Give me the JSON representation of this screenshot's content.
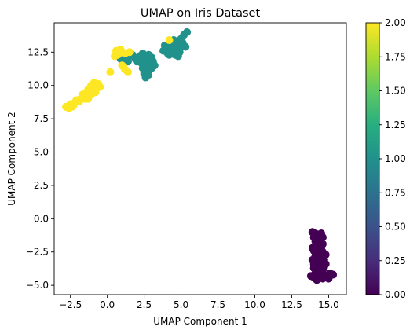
{
  "chart_data": {
    "type": "scatter",
    "title": "UMAP on Iris Dataset",
    "xlabel": "UMAP Component 1",
    "ylabel": "UMAP Component 2",
    "xlim": [
      -3.6,
      16.2
    ],
    "ylim": [
      -5.7,
      14.7
    ],
    "xticks": [
      -2.5,
      0.0,
      2.5,
      5.0,
      7.5,
      10.0,
      12.5,
      15.0
    ],
    "xtick_labels": [
      "−2.5",
      "0.0",
      "2.5",
      "5.0",
      "7.5",
      "10.0",
      "12.5",
      "15.0"
    ],
    "yticks": [
      -5.0,
      -2.5,
      0.0,
      2.5,
      5.0,
      7.5,
      10.0,
      12.5
    ],
    "ytick_labels": [
      "−5.0",
      "−2.5",
      "0.0",
      "2.5",
      "5.0",
      "7.5",
      "10.0",
      "12.5"
    ],
    "grid": false,
    "colormap": "viridis",
    "colorbar": {
      "min": 0.0,
      "max": 2.0,
      "ticks": [
        0.0,
        0.25,
        0.5,
        0.75,
        1.0,
        1.25,
        1.5,
        1.75,
        2.0
      ],
      "tick_labels": [
        "0.00",
        "0.25",
        "0.50",
        "0.75",
        "1.00",
        "1.25",
        "1.50",
        "1.75",
        "2.00"
      ]
    },
    "class_colors": [
      "#440154",
      "#21918c",
      "#fde725"
    ],
    "points": [
      {
        "x": 13.9,
        "y": -1.0,
        "c": 0
      },
      {
        "x": 14.1,
        "y": -1.1,
        "c": 0
      },
      {
        "x": 14.3,
        "y": -1.2,
        "c": 0
      },
      {
        "x": 14.5,
        "y": -1.1,
        "c": 0
      },
      {
        "x": 14.2,
        "y": -1.5,
        "c": 0
      },
      {
        "x": 14.0,
        "y": -1.4,
        "c": 0
      },
      {
        "x": 14.4,
        "y": -1.6,
        "c": 0
      },
      {
        "x": 14.6,
        "y": -1.9,
        "c": 0
      },
      {
        "x": 14.2,
        "y": -2.0,
        "c": 0
      },
      {
        "x": 14.3,
        "y": -2.4,
        "c": 0
      },
      {
        "x": 14.0,
        "y": -2.4,
        "c": 0
      },
      {
        "x": 14.6,
        "y": -2.5,
        "c": 0
      },
      {
        "x": 14.1,
        "y": -2.8,
        "c": 0
      },
      {
        "x": 14.4,
        "y": -3.0,
        "c": 0
      },
      {
        "x": 14.7,
        "y": -3.1,
        "c": 0
      },
      {
        "x": 14.8,
        "y": -2.7,
        "c": 0
      },
      {
        "x": 13.9,
        "y": -3.1,
        "c": 0
      },
      {
        "x": 14.2,
        "y": -3.4,
        "c": 0
      },
      {
        "x": 14.5,
        "y": -3.5,
        "c": 0
      },
      {
        "x": 14.0,
        "y": -3.7,
        "c": 0
      },
      {
        "x": 14.3,
        "y": -3.8,
        "c": 0
      },
      {
        "x": 14.6,
        "y": -3.9,
        "c": 0
      },
      {
        "x": 14.1,
        "y": -4.1,
        "c": 0
      },
      {
        "x": 14.4,
        "y": -4.2,
        "c": 0
      },
      {
        "x": 14.0,
        "y": -4.4,
        "c": 0
      },
      {
        "x": 14.3,
        "y": -4.5,
        "c": 0
      },
      {
        "x": 14.6,
        "y": -4.5,
        "c": 0
      },
      {
        "x": 14.9,
        "y": -4.3,
        "c": 0
      },
      {
        "x": 15.1,
        "y": -4.1,
        "c": 0
      },
      {
        "x": 15.3,
        "y": -4.2,
        "c": 0
      },
      {
        "x": 14.8,
        "y": -4.4,
        "c": 0
      },
      {
        "x": 15.0,
        "y": -4.5,
        "c": 0
      },
      {
        "x": 14.2,
        "y": -4.6,
        "c": 0
      },
      {
        "x": 13.8,
        "y": -4.3,
        "c": 0
      },
      {
        "x": 14.7,
        "y": -3.6,
        "c": 0
      },
      {
        "x": 14.5,
        "y": -2.2,
        "c": 0
      },
      {
        "x": 14.1,
        "y": -1.7,
        "c": 0
      },
      {
        "x": 14.4,
        "y": -2.7,
        "c": 0
      },
      {
        "x": 13.9,
        "y": -2.2,
        "c": 0
      },
      {
        "x": 14.6,
        "y": -1.4,
        "c": 0
      },
      {
        "x": 14.2,
        "y": -3.2,
        "c": 0
      },
      {
        "x": 14.0,
        "y": -3.4,
        "c": 0
      },
      {
        "x": 14.5,
        "y": -4.0,
        "c": 0
      },
      {
        "x": 14.8,
        "y": -3.4,
        "c": 0
      },
      {
        "x": 14.3,
        "y": -1.9,
        "c": 0
      },
      {
        "x": 0.9,
        "y": 12.0,
        "c": 1
      },
      {
        "x": 1.1,
        "y": 11.8,
        "c": 1
      },
      {
        "x": 1.3,
        "y": 12.0,
        "c": 1
      },
      {
        "x": 1.5,
        "y": 12.2,
        "c": 1
      },
      {
        "x": 1.7,
        "y": 12.3,
        "c": 1
      },
      {
        "x": 2.2,
        "y": 12.2,
        "c": 1
      },
      {
        "x": 2.4,
        "y": 12.4,
        "c": 1
      },
      {
        "x": 2.6,
        "y": 12.1,
        "c": 1
      },
      {
        "x": 2.8,
        "y": 12.3,
        "c": 1
      },
      {
        "x": 3.0,
        "y": 12.1,
        "c": 1
      },
      {
        "x": 2.0,
        "y": 11.8,
        "c": 1
      },
      {
        "x": 2.3,
        "y": 11.7,
        "c": 1
      },
      {
        "x": 2.6,
        "y": 11.6,
        "c": 1
      },
      {
        "x": 2.9,
        "y": 11.7,
        "c": 1
      },
      {
        "x": 3.1,
        "y": 11.8,
        "c": 1
      },
      {
        "x": 2.4,
        "y": 11.3,
        "c": 1
      },
      {
        "x": 2.7,
        "y": 11.2,
        "c": 1
      },
      {
        "x": 3.0,
        "y": 11.3,
        "c": 1
      },
      {
        "x": 2.5,
        "y": 10.9,
        "c": 1
      },
      {
        "x": 2.8,
        "y": 10.8,
        "c": 1
      },
      {
        "x": 2.6,
        "y": 10.6,
        "c": 1
      },
      {
        "x": 3.2,
        "y": 11.5,
        "c": 1
      },
      {
        "x": 1.9,
        "y": 12.0,
        "c": 1
      },
      {
        "x": 2.1,
        "y": 11.9,
        "c": 1
      },
      {
        "x": 4.0,
        "y": 12.9,
        "c": 1
      },
      {
        "x": 4.2,
        "y": 12.7,
        "c": 1
      },
      {
        "x": 4.4,
        "y": 13.0,
        "c": 1
      },
      {
        "x": 4.1,
        "y": 12.4,
        "c": 1
      },
      {
        "x": 4.5,
        "y": 12.6,
        "c": 1
      },
      {
        "x": 4.7,
        "y": 12.8,
        "c": 1
      },
      {
        "x": 4.8,
        "y": 13.1,
        "c": 1
      },
      {
        "x": 4.9,
        "y": 12.5,
        "c": 1
      },
      {
        "x": 4.6,
        "y": 12.3,
        "c": 1
      },
      {
        "x": 5.0,
        "y": 12.9,
        "c": 1
      },
      {
        "x": 5.1,
        "y": 13.2,
        "c": 1
      },
      {
        "x": 5.0,
        "y": 13.5,
        "c": 1
      },
      {
        "x": 5.2,
        "y": 13.8,
        "c": 1
      },
      {
        "x": 5.4,
        "y": 14.0,
        "c": 1
      },
      {
        "x": 4.5,
        "y": 13.4,
        "c": 1
      },
      {
        "x": 4.3,
        "y": 12.8,
        "c": 1
      },
      {
        "x": 3.9,
        "y": 13.0,
        "c": 1
      },
      {
        "x": 5.3,
        "y": 12.9,
        "c": 1
      },
      {
        "x": 4.8,
        "y": 12.2,
        "c": 1
      },
      {
        "x": 4.2,
        "y": 12.3,
        "c": 1
      },
      {
        "x": 3.8,
        "y": 12.6,
        "c": 1
      },
      {
        "x": 4.6,
        "y": 13.2,
        "c": 1
      },
      {
        "x": 2.7,
        "y": 12.0,
        "c": 1
      },
      {
        "x": 1.4,
        "y": 11.8,
        "c": 1
      },
      {
        "x": -2.8,
        "y": 8.4,
        "c": 2
      },
      {
        "x": -2.6,
        "y": 8.3,
        "c": 2
      },
      {
        "x": -2.4,
        "y": 8.4,
        "c": 2
      },
      {
        "x": -2.5,
        "y": 8.6,
        "c": 2
      },
      {
        "x": -2.2,
        "y": 8.7,
        "c": 2
      },
      {
        "x": -2.0,
        "y": 8.9,
        "c": 2
      },
      {
        "x": -1.8,
        "y": 9.0,
        "c": 2
      },
      {
        "x": -1.9,
        "y": 8.8,
        "c": 2
      },
      {
        "x": -1.6,
        "y": 9.1,
        "c": 2
      },
      {
        "x": -1.4,
        "y": 9.2,
        "c": 2
      },
      {
        "x": -1.5,
        "y": 9.4,
        "c": 2
      },
      {
        "x": -1.2,
        "y": 9.5,
        "c": 2
      },
      {
        "x": -1.3,
        "y": 9.7,
        "c": 2
      },
      {
        "x": -1.0,
        "y": 9.8,
        "c": 2
      },
      {
        "x": -0.8,
        "y": 10.0,
        "c": 2
      },
      {
        "x": -0.6,
        "y": 10.1,
        "c": 2
      },
      {
        "x": -0.9,
        "y": 9.6,
        "c": 2
      },
      {
        "x": -1.1,
        "y": 9.3,
        "c": 2
      },
      {
        "x": -0.7,
        "y": 9.8,
        "c": 2
      },
      {
        "x": -1.5,
        "y": 9.0,
        "c": 2
      },
      {
        "x": -1.7,
        "y": 9.3,
        "c": 2
      },
      {
        "x": -1.1,
        "y": 10.0,
        "c": 2
      },
      {
        "x": -0.9,
        "y": 10.2,
        "c": 2
      },
      {
        "x": -2.1,
        "y": 8.9,
        "c": 2
      },
      {
        "x": -1.3,
        "y": 9.0,
        "c": 2
      },
      {
        "x": -0.5,
        "y": 9.9,
        "c": 2
      },
      {
        "x": 0.2,
        "y": 11.0,
        "c": 2
      },
      {
        "x": 0.6,
        "y": 12.6,
        "c": 2
      },
      {
        "x": 0.8,
        "y": 12.4,
        "c": 2
      },
      {
        "x": 1.0,
        "y": 12.5,
        "c": 2
      },
      {
        "x": 0.7,
        "y": 12.3,
        "c": 2
      },
      {
        "x": 1.2,
        "y": 12.4,
        "c": 2
      },
      {
        "x": 0.9,
        "y": 12.7,
        "c": 2
      },
      {
        "x": 1.5,
        "y": 12.5,
        "c": 2
      },
      {
        "x": 1.1,
        "y": 11.4,
        "c": 2
      },
      {
        "x": 1.2,
        "y": 11.2,
        "c": 2
      },
      {
        "x": 1.4,
        "y": 11.0,
        "c": 2
      },
      {
        "x": 1.0,
        "y": 11.5,
        "c": 2
      },
      {
        "x": 4.2,
        "y": 13.4,
        "c": 2
      },
      {
        "x": -2.3,
        "y": 8.5,
        "c": 2
      },
      {
        "x": -0.8,
        "y": 9.5,
        "c": 2
      },
      {
        "x": 0.5,
        "y": 12.2,
        "c": 2
      }
    ]
  }
}
